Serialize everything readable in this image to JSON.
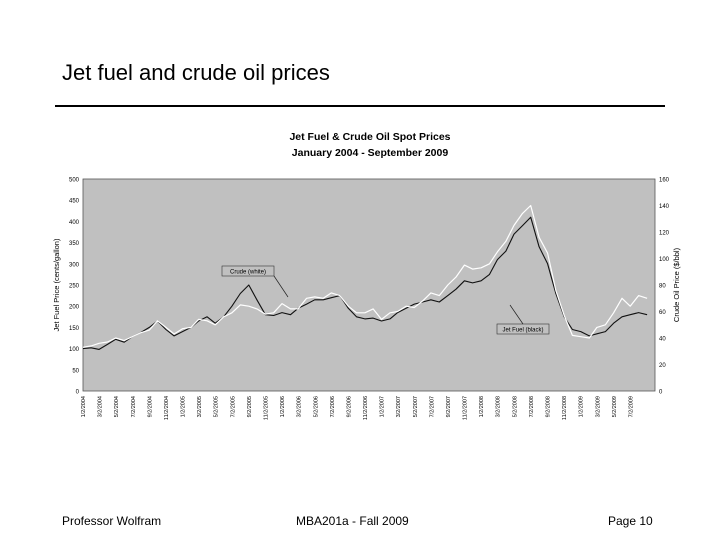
{
  "slide": {
    "title": "Jet fuel and crude oil prices",
    "footer_left": "Professor Wolfram",
    "footer_center": "MBA201a - Fall 2009",
    "footer_right": "Page 10"
  },
  "chart_data": {
    "type": "line",
    "title": "Jet Fuel & Crude Oil Spot Prices",
    "subtitle": "January 2004 - September 2009",
    "ylabel": "Jet Fuel Price (cents/gallon)",
    "y2label": "Crude Oil Price ($/bbl)",
    "ylim": [
      0,
      500
    ],
    "y2lim": [
      0,
      160
    ],
    "yticks": [
      0,
      50,
      100,
      150,
      200,
      250,
      300,
      350,
      400,
      450,
      500
    ],
    "y2ticks": [
      0,
      20,
      40,
      60,
      80,
      100,
      120,
      140,
      160
    ],
    "xtick_labels": [
      "1/2/2004",
      "3/2/2004",
      "5/2/2004",
      "7/2/2004",
      "9/2/2004",
      "11/2/2004",
      "1/2/2005",
      "3/2/2005",
      "5/2/2005",
      "7/2/2005",
      "9/2/2005",
      "11/2/2005",
      "1/2/2006",
      "3/2/2006",
      "5/2/2006",
      "7/2/2006",
      "9/2/2006",
      "11/2/2006",
      "1/2/2007",
      "3/2/2007",
      "5/2/2007",
      "7/2/2007",
      "9/2/2007",
      "11/2/2007",
      "1/2/2008",
      "3/2/2008",
      "5/2/2008",
      "7/2/2008",
      "9/2/2008",
      "11/2/2008",
      "1/2/2009",
      "3/2/2009",
      "5/2/2009",
      "7/2/2009"
    ],
    "grid": false,
    "background": "#c0c0c0",
    "annotations": [
      "Crude (white)",
      "Jet Fuel (black)"
    ],
    "series": [
      {
        "name": "Jet Fuel",
        "axis": "left",
        "color": "#111111",
        "x": [
          "2004-01-02",
          "2004-02-01",
          "2004-03-01",
          "2004-04-01",
          "2004-05-01",
          "2004-06-01",
          "2004-07-01",
          "2004-08-01",
          "2004-09-01",
          "2004-10-01",
          "2004-11-01",
          "2004-12-01",
          "2005-01-01",
          "2005-02-01",
          "2005-03-01",
          "2005-04-01",
          "2005-05-01",
          "2005-06-01",
          "2005-07-01",
          "2005-08-01",
          "2005-09-01",
          "2005-10-01",
          "2005-11-01",
          "2005-12-01",
          "2006-01-01",
          "2006-02-01",
          "2006-03-01",
          "2006-04-01",
          "2006-05-01",
          "2006-06-01",
          "2006-07-01",
          "2006-08-01",
          "2006-09-01",
          "2006-10-01",
          "2006-11-01",
          "2006-12-01",
          "2007-01-01",
          "2007-02-01",
          "2007-03-01",
          "2007-04-01",
          "2007-05-01",
          "2007-06-01",
          "2007-07-01",
          "2007-08-01",
          "2007-09-01",
          "2007-10-01",
          "2007-11-01",
          "2007-12-01",
          "2008-01-01",
          "2008-02-01",
          "2008-03-01",
          "2008-04-01",
          "2008-05-01",
          "2008-06-01",
          "2008-07-01",
          "2008-08-01",
          "2008-09-01",
          "2008-10-01",
          "2008-11-01",
          "2008-12-01",
          "2009-01-01",
          "2009-02-01",
          "2009-03-01",
          "2009-04-01",
          "2009-05-01",
          "2009-06-01",
          "2009-07-01",
          "2009-08-01",
          "2009-09-01"
        ],
        "values": [
          100,
          102,
          98,
          110,
          122,
          115,
          128,
          138,
          150,
          165,
          145,
          130,
          140,
          150,
          165,
          175,
          160,
          175,
          200,
          230,
          250,
          215,
          180,
          178,
          185,
          180,
          195,
          205,
          215,
          215,
          220,
          225,
          195,
          175,
          170,
          172,
          165,
          170,
          185,
          195,
          205,
          210,
          215,
          210,
          225,
          240,
          260,
          255,
          260,
          275,
          310,
          330,
          370,
          390,
          410,
          340,
          300,
          230,
          175,
          145,
          140,
          130,
          135,
          140,
          160,
          175,
          180,
          185,
          180
        ]
      },
      {
        "name": "Crude",
        "axis": "right",
        "color": "#ffffff",
        "x": [
          "2004-01-02",
          "2004-02-01",
          "2004-03-01",
          "2004-04-01",
          "2004-05-01",
          "2004-06-01",
          "2004-07-01",
          "2004-08-01",
          "2004-09-01",
          "2004-10-01",
          "2004-11-01",
          "2004-12-01",
          "2005-01-01",
          "2005-02-01",
          "2005-03-01",
          "2005-04-01",
          "2005-05-01",
          "2005-06-01",
          "2005-07-01",
          "2005-08-01",
          "2005-09-01",
          "2005-10-01",
          "2005-11-01",
          "2005-12-01",
          "2006-01-01",
          "2006-02-01",
          "2006-03-01",
          "2006-04-01",
          "2006-05-01",
          "2006-06-01",
          "2006-07-01",
          "2006-08-01",
          "2006-09-01",
          "2006-10-01",
          "2006-11-01",
          "2006-12-01",
          "2007-01-01",
          "2007-02-01",
          "2007-03-01",
          "2007-04-01",
          "2007-05-01",
          "2007-06-01",
          "2007-07-01",
          "2007-08-01",
          "2007-09-01",
          "2007-10-01",
          "2007-11-01",
          "2007-12-01",
          "2008-01-01",
          "2008-02-01",
          "2008-03-01",
          "2008-04-01",
          "2008-05-01",
          "2008-06-01",
          "2008-07-01",
          "2008-08-01",
          "2008-09-01",
          "2008-10-01",
          "2008-11-01",
          "2008-12-01",
          "2009-01-01",
          "2009-02-01",
          "2009-03-01",
          "2009-04-01",
          "2009-05-01",
          "2009-06-01",
          "2009-07-01",
          "2009-08-01",
          "2009-09-01"
        ],
        "values": [
          33,
          34,
          36,
          37,
          40,
          38,
          41,
          44,
          46,
          53,
          48,
          43,
          47,
          48,
          54,
          53,
          50,
          56,
          59,
          65,
          64,
          62,
          58,
          59,
          66,
          62,
          62,
          70,
          71,
          70,
          74,
          72,
          64,
          59,
          59,
          62,
          54,
          59,
          60,
          64,
          63,
          68,
          74,
          72,
          80,
          86,
          95,
          92,
          93,
          96,
          105,
          113,
          125,
          134,
          140,
          116,
          104,
          76,
          57,
          42,
          41,
          40,
          48,
          50,
          59,
          70,
          64,
          72,
          70
        ]
      }
    ]
  }
}
